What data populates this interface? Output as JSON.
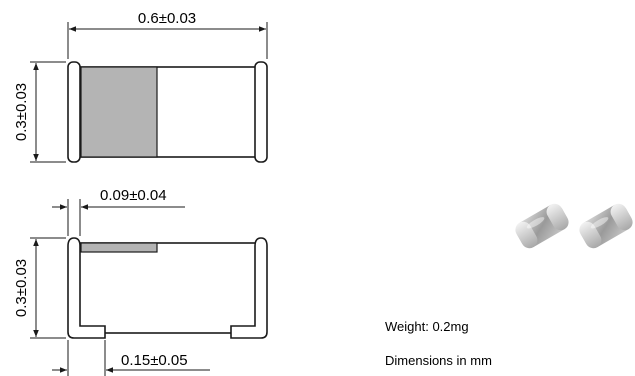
{
  "top_view": {
    "length_label": "0.6±0.03",
    "height_label": "0.3±0.03"
  },
  "side_view": {
    "top_electrode_label": "0.09±0.04",
    "height_label": "0.3±0.03",
    "bottom_electrode_label": "0.15±0.05"
  },
  "notes": {
    "weight": "Weight: 0.2mg",
    "units": "Dimensions in mm"
  },
  "colors": {
    "line": "#1a1a1a",
    "marking_band": "#b4b4b4",
    "body": "#ffffff"
  }
}
